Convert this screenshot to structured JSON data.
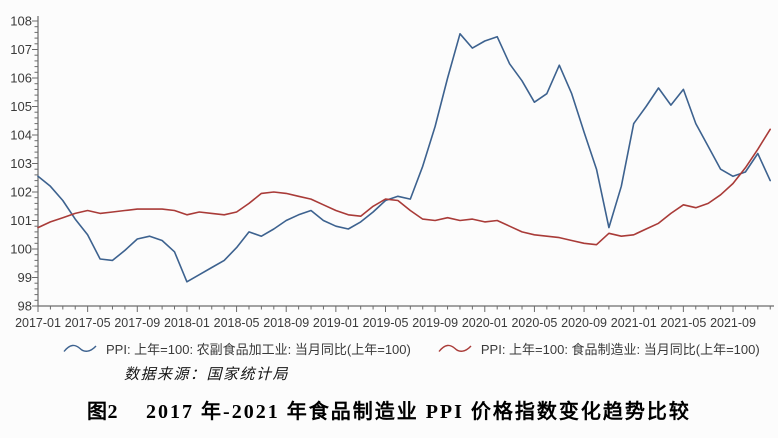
{
  "chart_data": {
    "type": "line",
    "title": "",
    "xlabel": "",
    "ylabel": "",
    "grid": false,
    "legend_position": "bottom",
    "axes": {
      "ylim": [
        98,
        108
      ],
      "y_major_step": 1,
      "y_minor_step": 0.2,
      "x_major_every": 4,
      "y_tick_labels": [
        98,
        99,
        100,
        101,
        102,
        103,
        104,
        105,
        106,
        107,
        108
      ],
      "x_major_tick_labels": [
        "2017-01",
        "2017-05",
        "2017-09",
        "2018-01",
        "2018-05",
        "2018-09",
        "2019-01",
        "2019-05",
        "2019-09",
        "2020-01",
        "2020-05",
        "2020-09",
        "2021-01",
        "2021-05",
        "2021-09"
      ]
    },
    "x": [
      "2017-01",
      "2017-02",
      "2017-03",
      "2017-04",
      "2017-05",
      "2017-06",
      "2017-07",
      "2017-08",
      "2017-09",
      "2017-10",
      "2017-11",
      "2017-12",
      "2018-01",
      "2018-02",
      "2018-03",
      "2018-04",
      "2018-05",
      "2018-06",
      "2018-07",
      "2018-08",
      "2018-09",
      "2018-10",
      "2018-11",
      "2018-12",
      "2019-01",
      "2019-02",
      "2019-03",
      "2019-04",
      "2019-05",
      "2019-06",
      "2019-07",
      "2019-08",
      "2019-09",
      "2019-10",
      "2019-11",
      "2019-12",
      "2020-01",
      "2020-02",
      "2020-03",
      "2020-04",
      "2020-05",
      "2020-06",
      "2020-07",
      "2020-08",
      "2020-09",
      "2020-10",
      "2020-11",
      "2020-12",
      "2021-01",
      "2021-02",
      "2021-03",
      "2021-04",
      "2021-05",
      "2021-06",
      "2021-07",
      "2021-08",
      "2021-09",
      "2021-10",
      "2021-11",
      "2021-12"
    ],
    "series": [
      {
        "key": "agri-food-processing",
        "name": "PPI: 上年=100: 农副食品加工业: 当月同比(上年=100)",
        "color": "#3d628f",
        "values": [
          102.55,
          102.2,
          101.7,
          101.05,
          100.5,
          99.65,
          99.6,
          99.95,
          100.35,
          100.45,
          100.3,
          99.9,
          98.85,
          99.1,
          99.35,
          99.6,
          100.05,
          100.6,
          100.45,
          100.7,
          101.0,
          101.2,
          101.35,
          101.0,
          100.8,
          100.7,
          100.95,
          101.3,
          101.7,
          101.85,
          101.75,
          102.9,
          104.3,
          106.0,
          107.55,
          107.05,
          107.3,
          107.45,
          106.5,
          105.9,
          105.15,
          105.45,
          106.45,
          105.45,
          104.1,
          102.8,
          100.75,
          102.2,
          104.4,
          105.0,
          105.65,
          105.05,
          105.6,
          104.4,
          103.6,
          102.8,
          102.55,
          102.7,
          103.35,
          102.4
        ]
      },
      {
        "key": "food-manufacturing",
        "name": "PPI: 上年=100: 食品制造业: 当月同比(上年=100)",
        "color": "#a93b38",
        "values": [
          100.75,
          100.95,
          101.1,
          101.25,
          101.35,
          101.25,
          101.3,
          101.35,
          101.4,
          101.4,
          101.4,
          101.35,
          101.2,
          101.3,
          101.25,
          101.2,
          101.3,
          101.6,
          101.95,
          102.0,
          101.95,
          101.85,
          101.75,
          101.55,
          101.35,
          101.2,
          101.15,
          101.5,
          101.75,
          101.7,
          101.35,
          101.05,
          101.0,
          101.1,
          101.0,
          101.05,
          100.95,
          101.0,
          100.8,
          100.6,
          100.5,
          100.45,
          100.4,
          100.3,
          100.2,
          100.15,
          100.55,
          100.45,
          100.5,
          100.7,
          100.9,
          101.25,
          101.55,
          101.45,
          101.6,
          101.9,
          102.3,
          102.85,
          103.5,
          104.2
        ]
      }
    ]
  },
  "legend": [
    {
      "label": "PPI: 上年=100: 农副食品加工业: 当月同比(上年=100)"
    },
    {
      "label": "PPI: 上年=100: 食品制造业: 当月同比(上年=100)"
    }
  ],
  "source_note": "数据来源：国家统计局",
  "caption": {
    "tag": "图2",
    "title": "2017 年-2021 年食品制造业 PPI 价格指数变化趋势比较"
  }
}
